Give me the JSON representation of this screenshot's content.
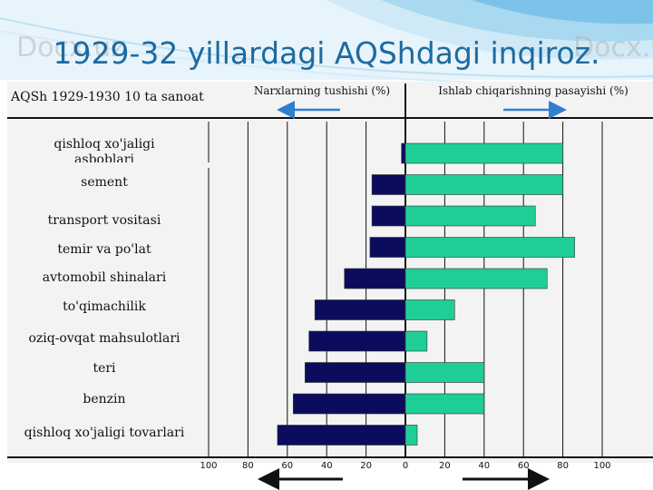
{
  "slide": {
    "title": "1929-32 yillardagi AQShdagi inqiroz.",
    "watermark": "Docx.uz"
  },
  "chart_data": {
    "type": "bar",
    "orientation": "horizontal",
    "title": "1929-32 yillardagi AQShdagi inqiroz.",
    "header_label": "AQSh 1929-1930 10 ta sanoat",
    "series": [
      {
        "name": "Narxlarning tushishi (%)",
        "color": "#0c0c5e",
        "direction": "left",
        "values": [
          2,
          17,
          17,
          18,
          31,
          46,
          49,
          51,
          57,
          65
        ]
      },
      {
        "name": "Ishlab chiqarishning pasayishi (%)",
        "color": "#1fce96",
        "direction": "right",
        "values": [
          80,
          80,
          66,
          86,
          72,
          25,
          11,
          40,
          40,
          6
        ]
      }
    ],
    "categories": [
      "qishloq xo'jaligi asboblari",
      "sement",
      "transport vositasi",
      "temir va po'lat",
      "avtomobil shinalari",
      "to'qimachilik",
      "oziq-ovqat mahsulotlari",
      "teri",
      "benzin",
      "qishloq xo'jaligi tovarlari"
    ],
    "x_ticks": [
      "100",
      "80",
      "60",
      "40",
      "20",
      "0",
      "20",
      "40",
      "60",
      "80",
      "100"
    ],
    "x_range": [
      -100,
      100
    ],
    "grid": true
  },
  "colors": {
    "title": "#1d6aa0",
    "arrow": "#2f7fd0",
    "panel": "#f1f1f1"
  }
}
